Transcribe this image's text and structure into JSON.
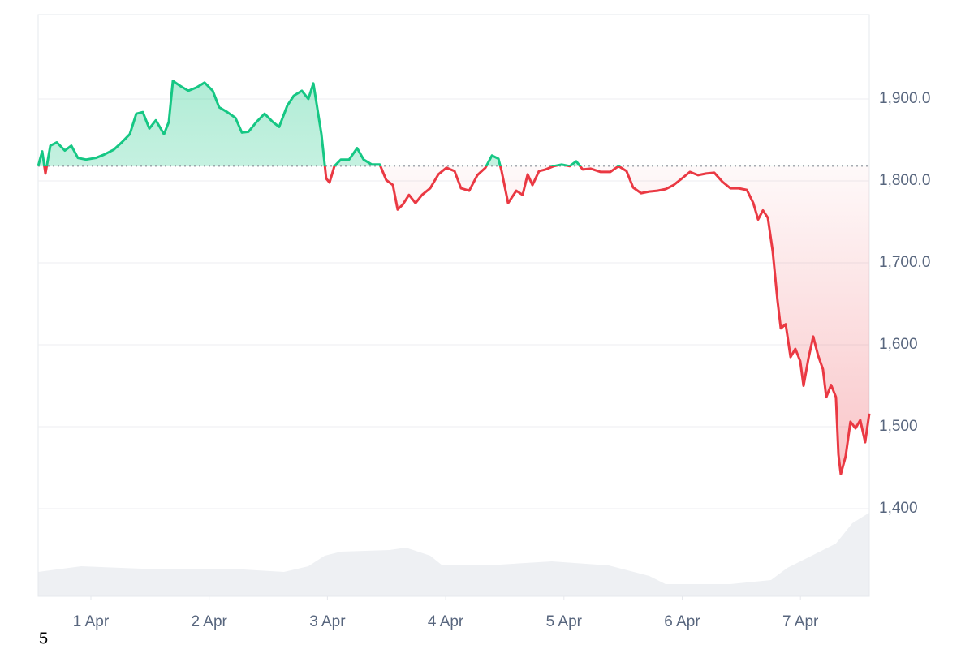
{
  "chart_data": {
    "type": "line",
    "series": [
      {
        "up_color": "#16c784",
        "down_color": "#ea3943",
        "x": [
          0.554,
          0.588,
          0.616,
          0.657,
          0.712,
          0.78,
          0.835,
          0.89,
          0.959,
          1.041,
          1.11,
          1.192,
          1.261,
          1.329,
          1.384,
          1.439,
          1.494,
          1.549,
          1.618,
          1.659,
          1.693,
          1.755,
          1.824,
          1.892,
          1.961,
          2.03,
          2.084,
          2.153,
          2.222,
          2.277,
          2.332,
          2.4,
          2.469,
          2.538,
          2.592,
          2.661,
          2.716,
          2.784,
          2.839,
          2.881,
          2.922,
          2.949,
          2.99,
          3.018,
          3.059,
          3.114,
          3.183,
          3.251,
          3.306,
          3.375,
          3.443,
          3.498,
          3.553,
          3.594,
          3.636,
          3.69,
          3.745,
          3.8,
          3.869,
          3.938,
          4.006,
          4.075,
          4.13,
          4.199,
          4.268,
          4.336,
          4.391,
          4.446,
          4.473,
          4.528,
          4.597,
          4.651,
          4.693,
          4.734,
          4.789,
          4.844,
          4.913,
          4.981,
          5.049,
          5.104,
          5.159,
          5.227,
          5.31,
          5.392,
          5.461,
          5.529,
          5.585,
          5.653,
          5.721,
          5.79,
          5.859,
          5.928,
          5.997,
          6.065,
          6.134,
          6.202,
          6.271,
          6.34,
          6.408,
          6.477,
          6.546,
          6.601,
          6.642,
          6.683,
          6.724,
          6.765,
          6.806,
          6.834,
          6.875,
          6.916,
          6.957,
          6.998,
          7.026,
          7.067,
          7.108,
          7.149,
          7.19,
          7.218,
          7.259,
          7.3,
          7.321,
          7.341,
          7.382,
          7.423,
          7.465,
          7.506,
          7.547,
          7.582
        ],
        "values": [
          1818,
          1836,
          1809,
          1843,
          1847,
          1837,
          1843,
          1828,
          1826,
          1828,
          1832,
          1838,
          1847,
          1857,
          1882,
          1884,
          1864,
          1874,
          1857,
          1872,
          1922,
          1916,
          1910,
          1914,
          1920,
          1910,
          1890,
          1884,
          1877,
          1859,
          1860,
          1872,
          1882,
          1872,
          1866,
          1892,
          1904,
          1910,
          1900,
          1919,
          1882,
          1857,
          1803,
          1798,
          1818,
          1826,
          1826,
          1840,
          1826,
          1820,
          1820,
          1801,
          1795,
          1765,
          1771,
          1783,
          1773,
          1783,
          1791,
          1808,
          1816,
          1812,
          1791,
          1788,
          1807,
          1816,
          1831,
          1827,
          1812,
          1773,
          1788,
          1783,
          1808,
          1795,
          1812,
          1814,
          1818,
          1820,
          1818,
          1824,
          1814,
          1815,
          1811,
          1811,
          1818,
          1812,
          1792,
          1785,
          1787,
          1788,
          1790,
          1795,
          1803,
          1811,
          1807,
          1809,
          1810,
          1799,
          1791,
          1791,
          1789,
          1773,
          1753,
          1764,
          1755,
          1714,
          1654,
          1620,
          1625,
          1585,
          1595,
          1580,
          1550,
          1583,
          1610,
          1587,
          1570,
          1536,
          1551,
          1536,
          1466,
          1442,
          1464,
          1506,
          1498,
          1508,
          1481,
          1516
        ]
      }
    ],
    "reference_value": 1818,
    "volume": {
      "color": "#eef0f3",
      "x": [
        0.554,
        0.918,
        1.604,
        2.29,
        2.633,
        2.839,
        2.977,
        3.114,
        3.526,
        3.663,
        3.869,
        3.972,
        4.349,
        4.898,
        5.379,
        5.722,
        5.859,
        6.408,
        6.751,
        6.889,
        7.095,
        7.3,
        7.438,
        7.582
      ],
      "values": [
        30,
        37,
        33,
        33,
        30,
        37,
        50,
        55,
        57,
        60,
        50,
        38,
        38,
        43,
        38,
        25,
        15,
        15,
        20,
        35,
        50,
        65,
        90,
        103
      ]
    },
    "volume_lim": [
      0,
      120
    ],
    "xlim": [
      0.554,
      7.582
    ],
    "xticks": [
      {
        "value": 1,
        "label": "1 Apr"
      },
      {
        "value": 2,
        "label": "2 Apr"
      },
      {
        "value": 3,
        "label": "3 Apr"
      },
      {
        "value": 4,
        "label": "4 Apr"
      },
      {
        "value": 5,
        "label": "5 Apr"
      },
      {
        "value": 6,
        "label": "6 Apr"
      },
      {
        "value": 7,
        "label": "7 Apr"
      }
    ],
    "ylim": [
      1293,
      2003
    ],
    "yticks": [
      {
        "value": 1400,
        "label": "1,400"
      },
      {
        "value": 1500,
        "label": "1,500"
      },
      {
        "value": 1600,
        "label": "1,600"
      },
      {
        "value": 1700,
        "label": "1,700.0"
      },
      {
        "value": 1800,
        "label": "1,800.0"
      },
      {
        "value": 1900,
        "label": "1,900.0"
      }
    ],
    "grid": true,
    "footer_text": "5"
  }
}
